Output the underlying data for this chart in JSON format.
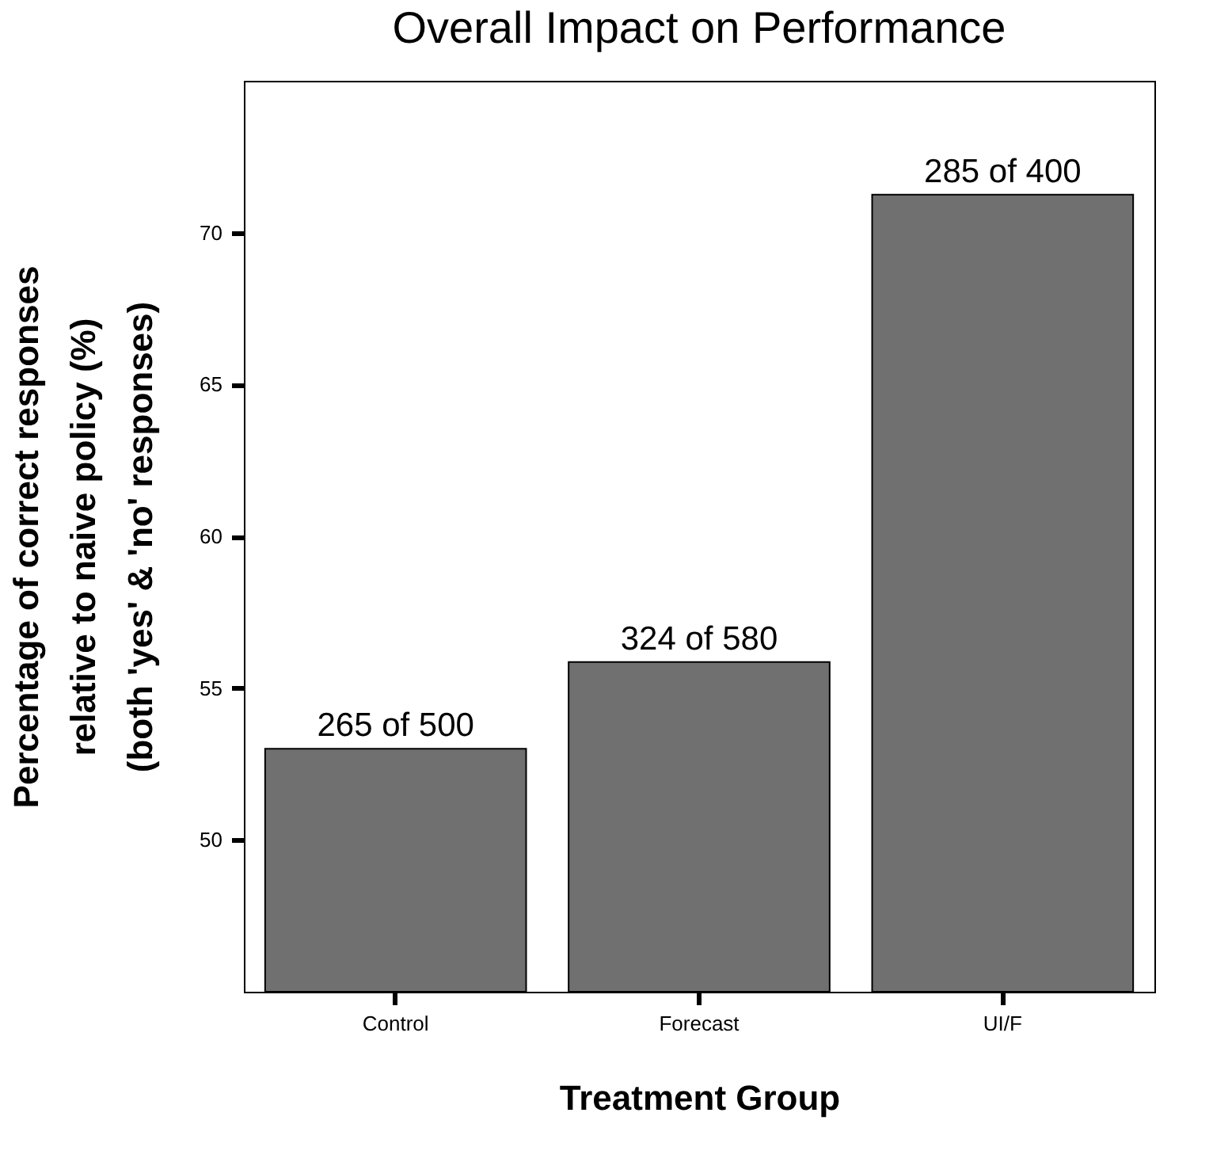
{
  "chart_data": {
    "type": "bar",
    "title": "Overall Impact on Performance",
    "xlabel": "Treatment Group",
    "ylabel": "Percentage of correct responses\nrelative to naive policy (%)\n(both 'yes' & 'no' responses)",
    "categories": [
      "Control",
      "Forecast",
      "UI/F"
    ],
    "values": [
      53.0,
      55.86,
      71.25
    ],
    "annotations": [
      {
        "text": "265 of 500",
        "x": "Control",
        "y": 53.0
      },
      {
        "text": "324 of 580",
        "x": "Forecast",
        "y": 55.86
      },
      {
        "text": "285 of 400",
        "x": "UI/F",
        "y": 71.25
      }
    ],
    "color": "#707070",
    "ylim": [
      45,
      75
    ],
    "yticks": [
      50,
      55,
      60,
      65,
      70
    ],
    "grid": false
  }
}
